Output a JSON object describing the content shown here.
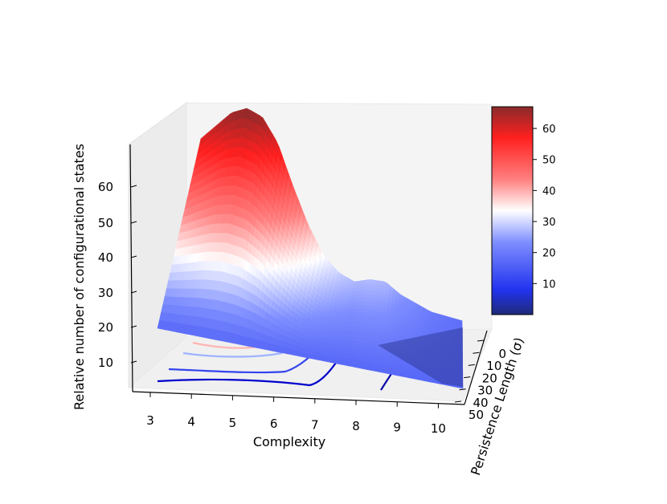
{
  "chart_data": {
    "type": "surface3d",
    "xlabel": "Complexity",
    "ylabel": "Persistence Length (σ)",
    "zlabel": "Relative number of configurational states",
    "x_ticks": [
      "3",
      "4",
      "5",
      "6",
      "7",
      "8",
      "9",
      "10"
    ],
    "y_ticks": [
      "0",
      "10",
      "20",
      "30",
      "40",
      "50"
    ],
    "z_ticks": [
      "10",
      "20",
      "30",
      "40",
      "50",
      "60"
    ],
    "colormap": "bwr",
    "colorbar": {
      "ticks": [
        "10",
        "20",
        "30",
        "40",
        "50",
        "60"
      ],
      "range": [
        0,
        67
      ]
    },
    "back_edge_profile": {
      "x": [
        3.2,
        3.6,
        4.0,
        4.4,
        4.8,
        5.2,
        5.6,
        6.0,
        6.4,
        6.8,
        7.2,
        7.6,
        8.0,
        8.4,
        8.8,
        9.2,
        9.6,
        10.0
      ],
      "z": [
        60,
        63,
        66,
        67,
        65,
        59,
        49,
        40,
        33,
        29,
        27,
        27.5,
        27,
        24,
        22,
        20,
        19,
        18
      ]
    },
    "contour_lines": [
      {
        "level": 20,
        "color": "#0000cc"
      },
      {
        "level": 30,
        "color": "#3344ee"
      },
      {
        "level": 40,
        "color": "#9fb3ff"
      },
      {
        "level": 50,
        "color": "#ffb3b3"
      },
      {
        "level": 60,
        "color": "#ee3333"
      },
      {
        "level": 65,
        "color": "#222288"
      }
    ]
  }
}
